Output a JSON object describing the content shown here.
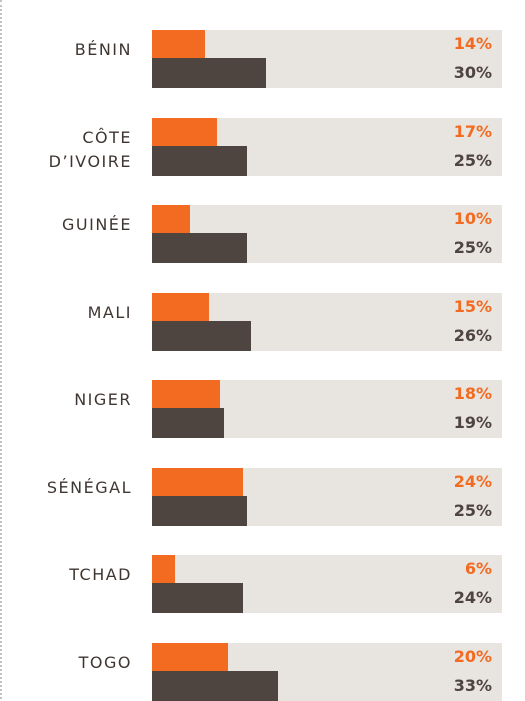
{
  "chart_data": {
    "type": "bar",
    "orientation": "horizontal",
    "categories": [
      "BÉNIN",
      "CÔTE D’IVOIRE",
      "GUINÉE",
      "MALI",
      "NIGER",
      "SÉNÉGAL",
      "TCHAD",
      "TOGO"
    ],
    "series": [
      {
        "color": "#f26b21",
        "values": [
          14,
          17,
          10,
          15,
          18,
          24,
          6,
          20
        ],
        "value_labels": [
          "14%",
          "17%",
          "10%",
          "15%",
          "18%",
          "24%",
          "6%",
          "20%"
        ]
      },
      {
        "color": "#4e4440",
        "values": [
          30,
          25,
          25,
          26,
          19,
          25,
          24,
          33
        ],
        "value_labels": [
          "30%",
          "25%",
          "25%",
          "26%",
          "19%",
          "25%",
          "24%",
          "33%"
        ]
      }
    ],
    "xlim": [
      0,
      92
    ],
    "track_color": "#e8e4e0"
  }
}
